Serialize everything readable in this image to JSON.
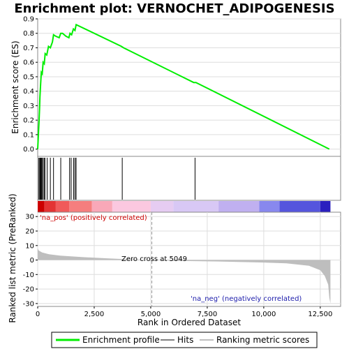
{
  "chart_data": {
    "type": "line",
    "title": "Enrichment plot: VERNOCHET_ADIPOGENESIS",
    "x_label": "Rank in Ordered Dataset",
    "top_panel": {
      "y_label": "Enrichment score (ES)",
      "ylim": [
        -0.05,
        0.9
      ],
      "xlim": [
        0,
        13400
      ],
      "y_ticks": [
        0.0,
        0.1,
        0.2,
        0.3,
        0.4,
        0.5,
        0.6,
        0.7,
        0.8,
        0.9
      ],
      "y_tick_labels": [
        "0.0",
        "0.1",
        "0.2",
        "0.3",
        "0.4",
        "0.5",
        "0.6",
        "0.7",
        "0.8",
        "0.9"
      ],
      "grid": true,
      "series": [
        {
          "name": "Enrichment profile",
          "color": "#00ee00",
          "x": [
            0,
            30,
            60,
            80,
            100,
            130,
            160,
            200,
            240,
            290,
            330,
            400,
            480,
            560,
            650,
            700,
            800,
            950,
            1020,
            1100,
            1250,
            1380,
            1430,
            1500,
            1580,
            1650,
            1700,
            3700,
            3800,
            6900,
            7000,
            12900
          ],
          "y": [
            0.0,
            0.1,
            0.19,
            0.27,
            0.36,
            0.45,
            0.53,
            0.52,
            0.6,
            0.59,
            0.66,
            0.65,
            0.71,
            0.7,
            0.74,
            0.79,
            0.78,
            0.77,
            0.8,
            0.8,
            0.78,
            0.77,
            0.8,
            0.79,
            0.83,
            0.82,
            0.86,
            0.71,
            0.7,
            0.46,
            0.46,
            0.0
          ]
        }
      ]
    },
    "hits": {
      "name": "Hits",
      "positions": [
        50,
        90,
        120,
        140,
        165,
        200,
        250,
        300,
        320,
        420,
        560,
        700,
        1020,
        1410,
        1480,
        1590,
        1650,
        1700,
        3740,
        6960
      ]
    },
    "middle_bar": {
      "colors": [
        "#cc0000",
        "#e33333",
        "#f05a5a",
        "#f57e7e",
        "#f9a8b8",
        "#fbc8e0",
        "#e6ccf2",
        "#d8c8f5",
        "#c0b0f0",
        "#8888ee",
        "#5555dd",
        "#2a1fbf"
      ],
      "breakpoints": [
        0,
        300,
        800,
        1400,
        2400,
        3300,
        5000,
        6000,
        8000,
        9800,
        10700,
        12500,
        12950
      ]
    },
    "bottom_panel": {
      "y_label": "Ranked list metric (PreRanked)",
      "ylim": [
        -32,
        33
      ],
      "y_ticks": [
        -30,
        -20,
        -10,
        0,
        10,
        20,
        30
      ],
      "y_tick_labels": [
        "-30",
        "-20",
        "-10",
        "0",
        "10",
        "20",
        "30"
      ],
      "x_ticks": [
        0,
        2500,
        5000,
        7500,
        10000,
        12500
      ],
      "x_tick_labels": [
        "0",
        "2,500",
        "5,000",
        "7,500",
        "10,000",
        "12,500"
      ],
      "grid": true,
      "metric_x": [
        0,
        50,
        200,
        500,
        1000,
        2000,
        3000,
        4000,
        5049,
        6000,
        8000,
        10000,
        11000,
        12000,
        12500,
        12700,
        12850,
        12900,
        12950
      ],
      "metric_y": [
        8,
        6.5,
        5.2,
        4,
        3,
        2,
        1.2,
        0.5,
        0,
        -0.5,
        -1,
        -1.7,
        -2.3,
        -4,
        -7,
        -11,
        -17,
        -26,
        -30
      ],
      "fill_color": "#bebebe",
      "zero_cross_x": 5049,
      "annotations": {
        "pos_label": "'na_pos' (positively correlated)",
        "pos_color": "#cc0000",
        "neg_label": "'na_neg' (negatively correlated)",
        "neg_color": "#1a1aaa",
        "zero_label": "Zero cross at 5049"
      }
    },
    "legend": {
      "position": "bottom",
      "items": [
        {
          "label": "Enrichment profile",
          "color": "#00ee00"
        },
        {
          "label": "Hits",
          "color": "#000000"
        },
        {
          "label": "Ranking metric scores",
          "color": "#bebebe"
        }
      ]
    }
  }
}
